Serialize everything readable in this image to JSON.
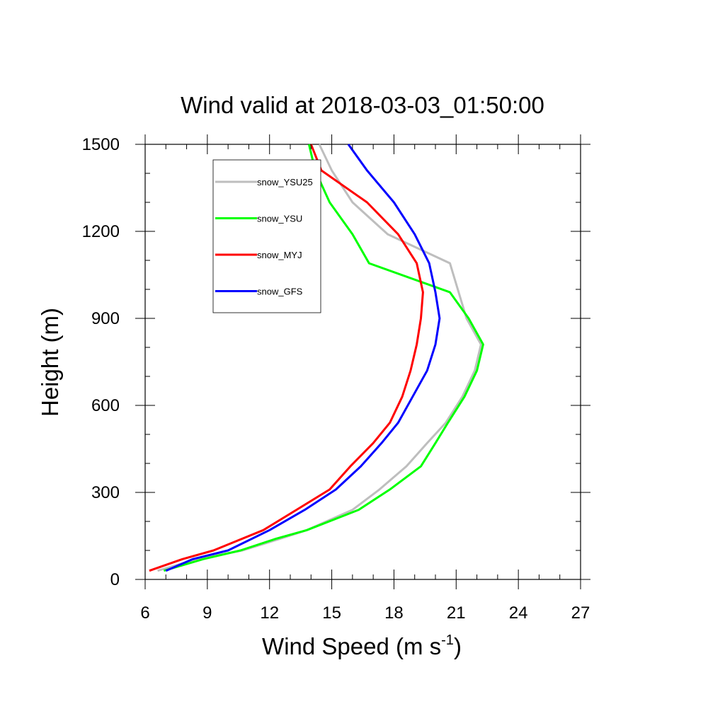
{
  "chart_data": {
    "type": "line",
    "title": "Wind valid at 2018-03-03_01:50:00",
    "xlabel": "Wind Speed (m s",
    "xlabel_sup": "-1",
    "xlabel_end": ")",
    "ylabel": "Height (m)",
    "xlim": [
      6,
      27
    ],
    "ylim": [
      0,
      1500
    ],
    "xticks": [
      6,
      9,
      12,
      15,
      18,
      21,
      24,
      27
    ],
    "yticks": [
      0,
      300,
      600,
      900,
      1200,
      1500
    ],
    "grid": false,
    "legend_position": "top-left",
    "series": [
      {
        "name": "snow_YSU25",
        "color": "#bebebe",
        "points": [
          [
            6.6,
            30
          ],
          [
            8.5,
            70
          ],
          [
            10.7,
            100
          ],
          [
            12.5,
            140
          ],
          [
            13.8,
            170
          ],
          [
            16.0,
            240
          ],
          [
            17.3,
            310
          ],
          [
            18.6,
            390
          ],
          [
            19.6,
            470
          ],
          [
            20.5,
            540
          ],
          [
            21.3,
            630
          ],
          [
            21.9,
            720
          ],
          [
            22.2,
            810
          ],
          [
            21.5,
            900
          ],
          [
            20.7,
            1090
          ],
          [
            19.2,
            1140
          ],
          [
            17.7,
            1190
          ],
          [
            16.0,
            1300
          ],
          [
            15.0,
            1410
          ],
          [
            14.4,
            1500
          ]
        ]
      },
      {
        "name": "snow_YSU",
        "color": "#00ff00",
        "points": [
          [
            6.9,
            30
          ],
          [
            8.8,
            70
          ],
          [
            10.6,
            100
          ],
          [
            12.3,
            140
          ],
          [
            13.8,
            170
          ],
          [
            16.3,
            240
          ],
          [
            17.8,
            310
          ],
          [
            19.3,
            390
          ],
          [
            20.0,
            470
          ],
          [
            20.6,
            540
          ],
          [
            21.4,
            630
          ],
          [
            22.0,
            720
          ],
          [
            22.3,
            810
          ],
          [
            21.6,
            900
          ],
          [
            20.7,
            990
          ],
          [
            16.8,
            1090
          ],
          [
            16.0,
            1190
          ],
          [
            14.9,
            1300
          ],
          [
            14.2,
            1410
          ],
          [
            13.9,
            1500
          ]
        ]
      },
      {
        "name": "snow_MYJ",
        "color": "#ff0000",
        "points": [
          [
            6.2,
            30
          ],
          [
            7.8,
            70
          ],
          [
            9.3,
            100
          ],
          [
            11.7,
            170
          ],
          [
            13.3,
            240
          ],
          [
            14.9,
            310
          ],
          [
            15.9,
            390
          ],
          [
            17.0,
            470
          ],
          [
            17.8,
            540
          ],
          [
            18.4,
            630
          ],
          [
            18.8,
            720
          ],
          [
            19.1,
            810
          ],
          [
            19.3,
            900
          ],
          [
            19.4,
            990
          ],
          [
            19.1,
            1090
          ],
          [
            18.2,
            1190
          ],
          [
            16.7,
            1300
          ],
          [
            14.5,
            1410
          ],
          [
            14.0,
            1500
          ]
        ]
      },
      {
        "name": "snow_GFS",
        "color": "#0000ff",
        "points": [
          [
            7.0,
            30
          ],
          [
            8.3,
            70
          ],
          [
            10.0,
            100
          ],
          [
            12.0,
            170
          ],
          [
            13.7,
            240
          ],
          [
            15.2,
            310
          ],
          [
            16.4,
            390
          ],
          [
            17.4,
            470
          ],
          [
            18.2,
            540
          ],
          [
            18.9,
            630
          ],
          [
            19.6,
            720
          ],
          [
            20.0,
            810
          ],
          [
            20.2,
            900
          ],
          [
            20.0,
            990
          ],
          [
            19.7,
            1090
          ],
          [
            19.0,
            1190
          ],
          [
            18.0,
            1300
          ],
          [
            16.7,
            1410
          ],
          [
            15.8,
            1500
          ]
        ]
      }
    ]
  }
}
